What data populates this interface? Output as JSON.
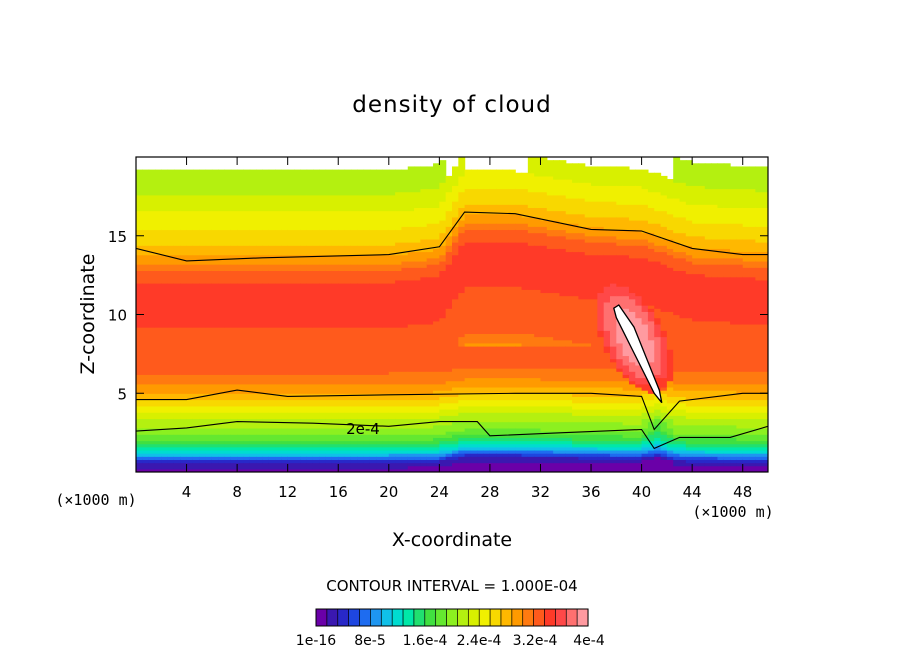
{
  "chart_data": {
    "type": "contour",
    "title": "density of cloud",
    "xlabel": "X-coordinate",
    "ylabel": "Z-coordinate",
    "x_unit": "(×1000 m)",
    "x_unit_right": "(×1000 m)",
    "xlim": [
      0,
      50
    ],
    "ylim": [
      0,
      20
    ],
    "x_ticks": [
      4,
      8,
      12,
      16,
      20,
      24,
      28,
      32,
      36,
      40,
      44,
      48
    ],
    "y_ticks": [
      5,
      10,
      15
    ],
    "contour_interval_text": "CONTOUR INTERVAL = 1.000E-04",
    "contour_label": "2e-4",
    "colorbar_labels": [
      "1e-16",
      "8e-5",
      "1.6e-4",
      "2.4e-4",
      "3.2e-4",
      "4e-4"
    ],
    "colorbar_levels": 24,
    "colorbar_colors": [
      "#6a00a8",
      "#3a18b0",
      "#2828c8",
      "#1e46e0",
      "#1e6cf0",
      "#1e96f0",
      "#10c0e8",
      "#00dcd0",
      "#00e8a8",
      "#20e070",
      "#40e040",
      "#64e830",
      "#8cf020",
      "#b4f010",
      "#d8f000",
      "#f0f000",
      "#f8d800",
      "#ffb800",
      "#ff9a00",
      "#ff7a10",
      "#ff5a1c",
      "#ff3a28",
      "#ff4848",
      "#ff7070",
      "#ff9aa0"
    ],
    "fields": {
      "upper_boundary_contour": [
        [
          0,
          14.2
        ],
        [
          4,
          13.4
        ],
        [
          10,
          13.6
        ],
        [
          20,
          13.8
        ],
        [
          24,
          14.3
        ],
        [
          26,
          16.5
        ],
        [
          30,
          16.4
        ],
        [
          36,
          15.4
        ],
        [
          40,
          15.3
        ],
        [
          44,
          14.2
        ],
        [
          48,
          13.8
        ],
        [
          50,
          13.8
        ]
      ],
      "lower_boundary_contour": [
        [
          0,
          4.6
        ],
        [
          4,
          4.6
        ],
        [
          8,
          5.2
        ],
        [
          12,
          4.8
        ],
        [
          20,
          4.9
        ],
        [
          30,
          5.0
        ],
        [
          36,
          5.0
        ],
        [
          40,
          4.8
        ],
        [
          41,
          2.7
        ],
        [
          43,
          4.5
        ],
        [
          48,
          5.0
        ],
        [
          50,
          5.0
        ]
      ],
      "label_contour_2e4": [
        [
          0,
          2.6
        ],
        [
          4,
          2.8
        ],
        [
          8,
          3.2
        ],
        [
          14,
          3.1
        ],
        [
          20,
          2.9
        ],
        [
          24,
          3.2
        ],
        [
          27,
          3.2
        ],
        [
          28,
          2.3
        ],
        [
          34,
          2.5
        ],
        [
          40,
          2.7
        ],
        [
          41,
          1.5
        ],
        [
          43,
          2.2
        ],
        [
          47,
          2.2
        ],
        [
          50,
          2.9
        ]
      ],
      "maximum_region": [
        [
          38.2,
          10.6
        ],
        [
          39.4,
          9.2
        ],
        [
          41.4,
          5.2
        ],
        [
          41.6,
          4.4
        ],
        [
          41.0,
          5.0
        ],
        [
          38.0,
          9.8
        ],
        [
          37.8,
          10.4
        ]
      ]
    }
  }
}
